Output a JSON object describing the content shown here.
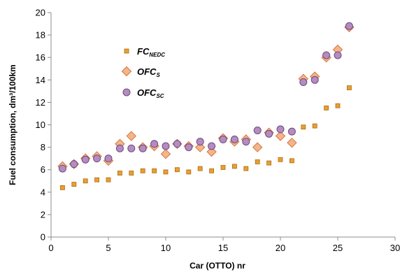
{
  "chart_data": {
    "type": "scatter",
    "xlabel": "Car (OTTO) nr",
    "ylabel": "Fuel consumption, dm³/100km",
    "xlim": [
      0,
      30
    ],
    "ylim": [
      0,
      20
    ],
    "xticks": [
      0,
      5,
      10,
      15,
      20,
      25,
      30
    ],
    "yticks": [
      0,
      2,
      4,
      6,
      8,
      10,
      12,
      14,
      16,
      18,
      20
    ],
    "grid": false,
    "legend_position": "top-left",
    "series": [
      {
        "name": "FC",
        "name_subscript": "NEDC",
        "marker": "square",
        "color": "#e8a030",
        "stroke": "#b06810",
        "x": [
          1,
          2,
          3,
          4,
          5,
          6,
          7,
          8,
          9,
          10,
          11,
          12,
          13,
          14,
          15,
          16,
          17,
          18,
          19,
          20,
          21,
          22,
          23,
          24,
          25,
          26
        ],
        "y": [
          4.4,
          4.7,
          5.0,
          5.1,
          5.1,
          5.7,
          5.7,
          5.9,
          5.9,
          5.8,
          6.0,
          5.8,
          6.1,
          5.9,
          6.2,
          6.3,
          6.1,
          6.7,
          6.6,
          6.9,
          6.8,
          9.8,
          9.9,
          11.5,
          11.7,
          13.3
        ]
      },
      {
        "name": "OFC",
        "name_subscript": "S",
        "marker": "diamond",
        "color": "#f5b48a",
        "stroke": "#d2763e",
        "x": [
          1,
          2,
          3,
          4,
          5,
          6,
          7,
          8,
          9,
          10,
          11,
          12,
          13,
          14,
          15,
          16,
          17,
          18,
          19,
          20,
          21,
          22,
          23,
          24,
          25,
          26
        ],
        "y": [
          6.3,
          6.5,
          7.0,
          7.2,
          6.8,
          8.3,
          9.0,
          8.0,
          8.1,
          7.4,
          8.3,
          8.1,
          8.0,
          7.6,
          8.8,
          8.5,
          8.7,
          8.0,
          9.3,
          9.0,
          8.4,
          14.1,
          14.3,
          16.0,
          16.7,
          18.7
        ]
      },
      {
        "name": "OFC",
        "name_subscript": "SC",
        "marker": "circle",
        "color": "#b48cc0",
        "stroke": "#6e4a7e",
        "x": [
          1,
          2,
          3,
          4,
          5,
          6,
          7,
          8,
          9,
          10,
          11,
          12,
          13,
          14,
          15,
          16,
          17,
          18,
          19,
          20,
          21,
          22,
          23,
          24,
          25,
          26
        ],
        "y": [
          6.1,
          6.5,
          6.9,
          7.0,
          7.0,
          7.9,
          7.9,
          7.9,
          8.3,
          8.1,
          8.3,
          8.0,
          8.5,
          8.1,
          8.7,
          8.7,
          8.5,
          9.5,
          9.2,
          9.6,
          9.4,
          13.8,
          14.0,
          16.2,
          16.2,
          18.8
        ]
      }
    ]
  }
}
